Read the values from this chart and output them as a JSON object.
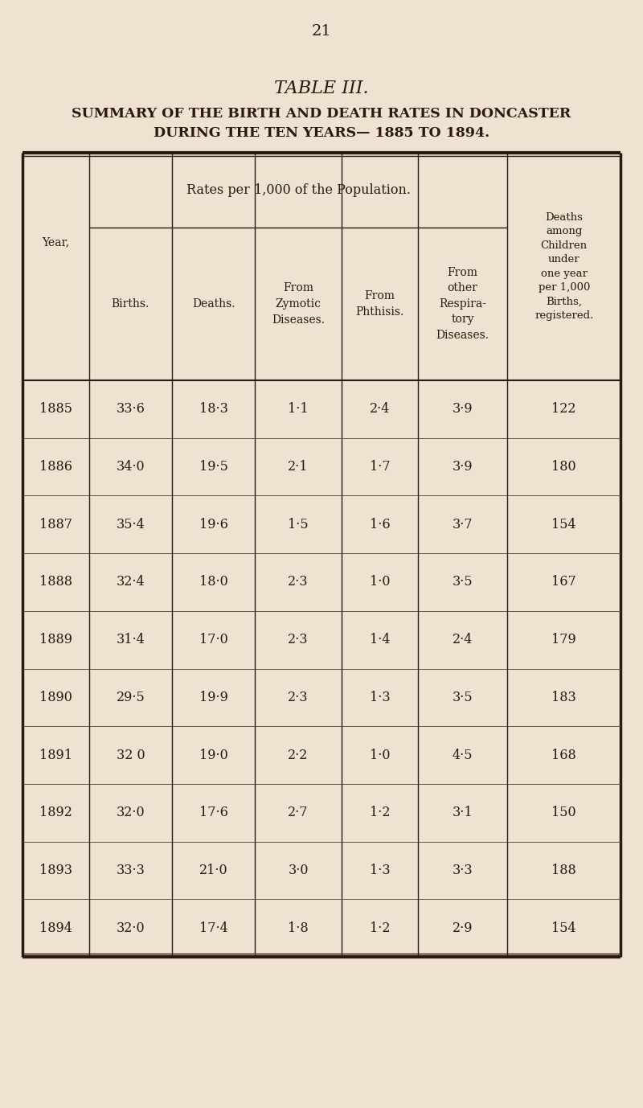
{
  "page_number": "21",
  "title_line1": "TABLE III.",
  "title_line2": "SUMMARY OF THE BIRTH AND DEATH RATES IN DONCASTER",
  "title_line3": "DURING THE TEN YEARS— 1885 TO 1894.",
  "background_color": "#EDE3D0",
  "text_color": "#2C1810",
  "subheader": "Rates per 1,000 of the Population.",
  "col_header_year": "Year,",
  "col_header_births": "Births.",
  "col_header_deaths": "Deaths.",
  "col_header_zymotic": "From\nZymotic\nDiseases.",
  "col_header_phthisis": "From\nPhthisis.",
  "col_header_respiratory": "From\nother\nRespira-\ntory\nDiseases.",
  "col_header_child": "Deaths\namong\nChildren\nunder\none year\nper 1,000\nBirths,\nregistered.",
  "data": [
    {
      "year": "1885",
      "births": "33·6",
      "deaths": "18·3",
      "zymotic": "1·1",
      "phthisis": "2·4",
      "respiratory": "3·9",
      "child_deaths": "122"
    },
    {
      "year": "1886",
      "births": "34·0",
      "deaths": "19·5",
      "zymotic": "2·1",
      "phthisis": "1·7",
      "respiratory": "3·9",
      "child_deaths": "180"
    },
    {
      "year": "1887",
      "births": "35·4",
      "deaths": "19·6",
      "zymotic": "1·5",
      "phthisis": "1·6",
      "respiratory": "3·7",
      "child_deaths": "154"
    },
    {
      "year": "1888",
      "births": "32·4",
      "deaths": "18·0",
      "zymotic": "2·3",
      "phthisis": "1·0",
      "respiratory": "3·5",
      "child_deaths": "167"
    },
    {
      "year": "1889",
      "births": "31·4",
      "deaths": "17·0",
      "zymotic": "2·3",
      "phthisis": "1·4",
      "respiratory": "2·4",
      "child_deaths": "179"
    },
    {
      "year": "1890",
      "births": "29·5",
      "deaths": "19·9",
      "zymotic": "2·3",
      "phthisis": "1·3",
      "respiratory": "3·5",
      "child_deaths": "183"
    },
    {
      "year": "1891",
      "births": "32 0",
      "deaths": "19·0",
      "zymotic": "2·2",
      "phthisis": "1·0",
      "respiratory": "4·5",
      "child_deaths": "168"
    },
    {
      "year": "1892",
      "births": "32·0",
      "deaths": "17·6",
      "zymotic": "2·7",
      "phthisis": "1·2",
      "respiratory": "3·1",
      "child_deaths": "150"
    },
    {
      "year": "1893",
      "births": "33·3",
      "deaths": "21·0",
      "zymotic": "3·0",
      "phthisis": "1·3",
      "respiratory": "3·3",
      "child_deaths": "188"
    },
    {
      "year": "1894",
      "births": "32·0",
      "deaths": "17·4",
      "zymotic": "1·8",
      "phthisis": "1·2",
      "respiratory": "2·9",
      "child_deaths": "154"
    }
  ],
  "figsize": [
    8.0,
    13.78
  ],
  "dpi": 100
}
